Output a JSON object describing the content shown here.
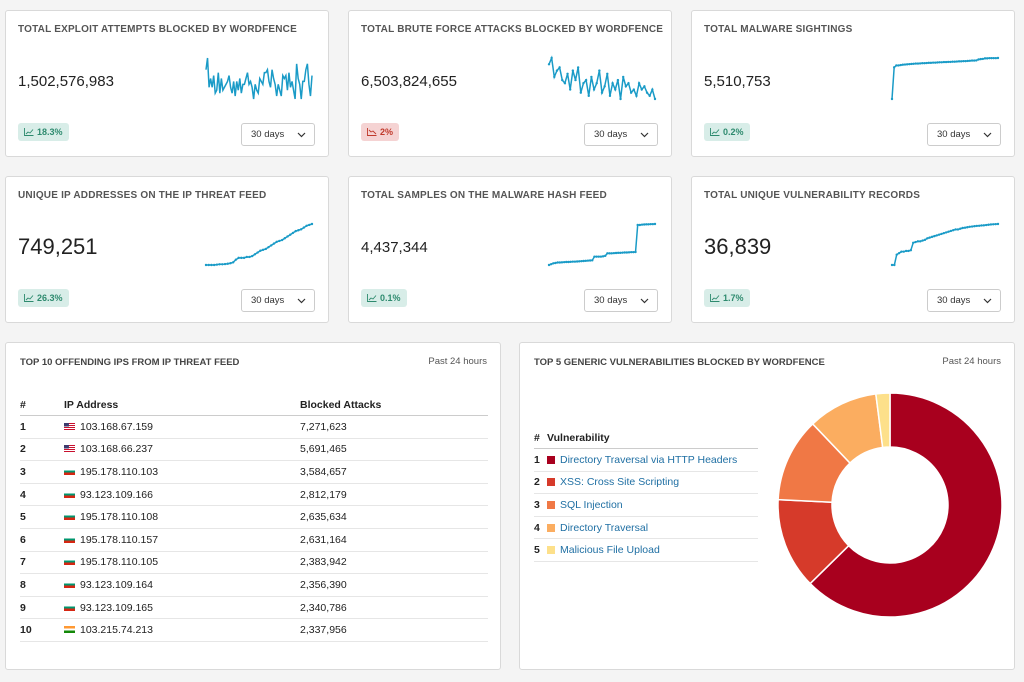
{
  "stats": [
    {
      "title": "TOTAL EXPLOIT ATTEMPTS BLOCKED BY WORDFENCE",
      "value": "1,502,576,983",
      "trend": "18.3%",
      "direction": "up",
      "range": "30 days",
      "spark": [
        6,
        2,
        12,
        9,
        12,
        8,
        14,
        13,
        7,
        14,
        9,
        13,
        12,
        11,
        10,
        8,
        12,
        14,
        10,
        15,
        10,
        13,
        9,
        14,
        11,
        11,
        9,
        7,
        11,
        10,
        12,
        16,
        11,
        13,
        14,
        9,
        10,
        11,
        7,
        7,
        6,
        10,
        12,
        6,
        9,
        11,
        15,
        11,
        13,
        15,
        8,
        9,
        8,
        13,
        7,
        12,
        10,
        13,
        16,
        4,
        9,
        11,
        16,
        10,
        10,
        6,
        4,
        11,
        15,
        8
      ]
    },
    {
      "title": "TOTAL BRUTE FORCE ATTACKS BLOCKED BY WORDFENCE",
      "value": "6,503,824,655",
      "trend": "2%",
      "direction": "down",
      "range": "30 days",
      "spark": [
        4,
        2,
        8,
        6,
        5,
        9,
        10,
        7,
        12,
        6,
        9,
        5,
        13,
        10,
        9,
        14,
        8,
        12,
        10,
        6,
        13,
        11,
        7,
        14,
        10,
        12,
        9,
        15,
        8,
        11,
        10,
        13,
        12,
        14,
        10,
        12,
        11,
        13,
        14,
        12,
        15
      ]
    },
    {
      "title": "TOTAL MALWARE SIGHTINGS",
      "value": "5,510,753",
      "trend": "0.2%",
      "direction": "up",
      "range": "30 days",
      "spark": [
        22,
        5,
        4,
        4,
        3.8,
        3.6,
        3.5,
        3.4,
        3.3,
        3.2,
        3.1,
        3.0,
        3.0,
        2.9,
        2.8,
        2.8,
        2.7,
        2.6,
        2.6,
        2.5,
        2.5,
        2.4,
        2.3,
        2.3,
        2.2,
        2.2,
        2.1,
        2.1,
        2.0,
        2.0,
        1.9,
        1.8,
        1.8,
        1.7,
        1.7,
        1.6,
        1.5,
        1.4,
        1.4,
        1.3,
        0.8,
        0.6,
        0.5,
        0.2,
        0.2,
        0.1,
        0.1,
        0.1,
        0.1,
        0
      ]
    },
    {
      "title": "UNIQUE IP ADDRESSES ON THE IP THREAT FEED",
      "value": "749,251",
      "trend": "26.3%",
      "direction": "up",
      "range": "30 days",
      "spark": [
        36,
        36,
        36,
        36,
        35.8,
        35.6,
        35.6,
        35.5,
        35.3,
        35,
        34.5,
        33,
        32,
        32,
        32,
        31.5,
        31.5,
        31,
        30,
        29,
        28,
        27.5,
        27,
        26,
        25,
        24,
        23,
        22.5,
        22,
        21,
        20,
        19,
        18,
        17,
        16.5,
        16,
        15,
        14,
        13.5,
        13
      ]
    },
    {
      "title": "TOTAL SAMPLES ON THE MALWARE HASH FEED",
      "value": "4,437,344",
      "trend": "0.1%",
      "direction": "up",
      "range": "30 days",
      "spark": [
        38,
        37.5,
        37,
        36.8,
        36.5,
        36.5,
        36.4,
        36.3,
        36.2,
        36.2,
        36.1,
        36,
        36,
        35.9,
        35.8,
        35.7,
        35.6,
        35.5,
        35.4,
        35.3,
        35.2,
        33,
        33,
        33,
        33,
        32.8,
        32.5,
        31,
        31,
        31,
        30.9,
        30.8,
        30.7,
        30.7,
        30.6,
        30.5,
        30.5,
        30.4,
        30.3,
        30.3,
        30.2,
        14,
        14,
        13.8,
        13.7,
        13.6,
        13.6,
        13.5,
        13.5,
        13.4
      ]
    },
    {
      "title": "TOTAL UNIQUE VULNERABILITY RECORDS",
      "value": "36,839",
      "trend": "1.7%",
      "direction": "up",
      "range": "30 days",
      "spark": [
        40,
        40,
        33,
        32,
        31,
        31,
        30.5,
        30.5,
        30,
        25,
        24.5,
        24,
        24,
        23.5,
        23,
        22,
        21.5,
        21,
        20.5,
        20,
        19.5,
        19,
        18.5,
        18,
        17.5,
        17,
        16.5,
        16,
        16,
        15.5,
        15,
        14.8,
        14.5,
        14.2,
        14,
        13.8,
        13.6,
        13.5,
        13.3,
        13.2,
        13,
        12.8,
        12.6,
        12.5,
        12.4,
        12.3
      ]
    }
  ],
  "ips_panel": {
    "title": "TOP 10 OFFENDING IPS FROM IP THREAT FEED",
    "period": "Past 24 hours",
    "columns": [
      "#",
      "IP Address",
      "Blocked Attacks"
    ],
    "rows": [
      {
        "n": "1",
        "flag": "us",
        "ip": "103.168.67.159",
        "count": "7,271,623"
      },
      {
        "n": "2",
        "flag": "us",
        "ip": "103.168.66.237",
        "count": "5,691,465"
      },
      {
        "n": "3",
        "flag": "bg",
        "ip": "195.178.110.103",
        "count": "3,584,657"
      },
      {
        "n": "4",
        "flag": "bg",
        "ip": "93.123.109.166",
        "count": "2,812,179"
      },
      {
        "n": "5",
        "flag": "bg",
        "ip": "195.178.110.108",
        "count": "2,635,634"
      },
      {
        "n": "6",
        "flag": "bg",
        "ip": "195.178.110.157",
        "count": "2,631,164"
      },
      {
        "n": "7",
        "flag": "bg",
        "ip": "195.178.110.105",
        "count": "2,383,942"
      },
      {
        "n": "8",
        "flag": "bg",
        "ip": "93.123.109.164",
        "count": "2,356,390"
      },
      {
        "n": "9",
        "flag": "bg",
        "ip": "93.123.109.165",
        "count": "2,340,786"
      },
      {
        "n": "10",
        "flag": "in",
        "ip": "103.215.74.213",
        "count": "2,337,956"
      }
    ]
  },
  "vuln_panel": {
    "title": "TOP 5 GENERIC VULNERABILITIES BLOCKED BY WORDFENCE",
    "period": "Past 24 hours",
    "columns": [
      "#",
      "Vulnerability"
    ],
    "rows": [
      {
        "n": "1",
        "name": "Directory Traversal via HTTP Headers",
        "color": "#a8001e"
      },
      {
        "n": "2",
        "name": "XSS: Cross Site Scripting",
        "color": "#d63a2a"
      },
      {
        "n": "3",
        "name": "SQL Injection",
        "color": "#f07845"
      },
      {
        "n": "4",
        "name": "Directory Traversal",
        "color": "#fbad60"
      },
      {
        "n": "5",
        "name": "Malicious File Upload",
        "color": "#fde08a"
      }
    ]
  },
  "chart_data": {
    "type": "pie",
    "categories": [
      "Directory Traversal via HTTP Headers",
      "XSS: Cross Site Scripting",
      "SQL Injection",
      "Directory Traversal",
      "Malicious File Upload"
    ],
    "values": [
      0.62,
      0.13,
      0.12,
      0.1,
      0.02
    ],
    "colors": [
      "#a8001e",
      "#d63a2a",
      "#f07845",
      "#fbad60",
      "#fde08a"
    ],
    "donut": true
  },
  "colors": {
    "spark": "#1a9bc7",
    "up_bg": "#d8ede8",
    "down_bg": "#f5d3d3"
  }
}
